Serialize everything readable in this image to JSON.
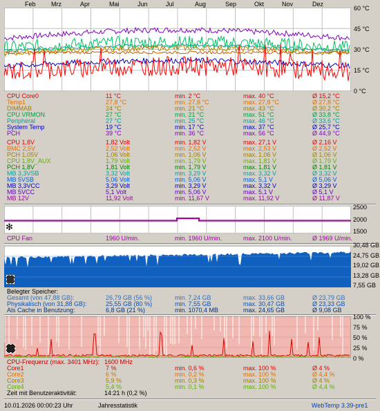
{
  "months": [
    "Feb",
    "Mrz",
    "Apr",
    "Mai",
    "Jun",
    "Jul",
    "Aug",
    "Sep",
    "Okt",
    "Nov",
    "Dez"
  ],
  "temp_chart": {
    "y_labels": [
      "60 °C",
      "45 °C",
      "30 °C",
      "15 °C",
      "0 °C"
    ],
    "ylim": [
      0,
      60
    ],
    "series": [
      {
        "color": "#8000c0",
        "level": 38
      },
      {
        "color": "#00a0a0",
        "level": 29
      },
      {
        "color": "#00c060",
        "level": 31
      },
      {
        "color": "#c08000",
        "level": 27
      },
      {
        "color": "#c06000",
        "level": 27.8
      },
      {
        "color": "#0000c0",
        "level": 18
      },
      {
        "color": "#ff0000",
        "level": 14
      }
    ]
  },
  "temps": [
    {
      "name": "CPU Core0",
      "cur": "11 °C",
      "min": "min. 2 °C",
      "max": "max. 40 °C",
      "avg": "Ø 15,2 °C",
      "color": "#e00000"
    },
    {
      "name": "Temp1",
      "cur": "27,8 °C",
      "min": "min. 27,8 °C",
      "max": "max. 27,8 °C",
      "avg": "Ø 27,8 °C",
      "color": "#e07000"
    },
    {
      "name": "DIMMAB",
      "cur": "24 °C",
      "min": "min. 21 °C",
      "max": "max. 43 °C",
      "avg": "Ø 30,2 °C",
      "color": "#a08000"
    },
    {
      "name": "CPU VRMON",
      "cur": "27 °C",
      "min": "min. 21 °C",
      "max": "max. 51 °C",
      "avg": "Ø 33,8 °C",
      "color": "#00a040"
    },
    {
      "name": "Peripheral",
      "cur": "27 °C",
      "min": "min. 25 °C",
      "max": "max. 46 °C",
      "avg": "Ø 33,6 °C",
      "color": "#00a0a0"
    },
    {
      "name": "System Temp",
      "cur": "19 °C",
      "min": "min. 17 °C",
      "max": "max. 37 °C",
      "avg": "Ø 25,7 °C",
      "color": "#0000c0"
    },
    {
      "name": "PCH",
      "cur": "39 °C",
      "min": "min. 36 °C",
      "max": "max. 56 °C",
      "avg": "Ø 44,9 °C",
      "color": "#8000c0"
    }
  ],
  "volts": [
    {
      "name": "CPU 1,8V",
      "cur": "1,82 Volt",
      "min": "min. 1,82 V",
      "max": "max. 27,1 V",
      "avg": "Ø 2,16 V",
      "color": "#e00000"
    },
    {
      "name": "BMC 2,5V",
      "cur": "2,52 Volt",
      "min": "min. 2,52 V",
      "max": "max. 2,53 V",
      "avg": "Ø 2,52 V",
      "color": "#e07000"
    },
    {
      "name": "PCH 1,05V",
      "cur": "1,06 Volt",
      "min": "min. 1,06 V",
      "max": "max. 1,06 V",
      "avg": "Ø 1,06 V",
      "color": "#a08000"
    },
    {
      "name": "CPU 1,8V_AUX",
      "cur": "1,79 Volt",
      "min": "min. 1,79 V",
      "max": "max. 1,81 V",
      "avg": "Ø 1,79 V",
      "color": "#60b000"
    },
    {
      "name": "PCH 1,8V",
      "cur": "1,81 Volt",
      "min": "min. 1,79 V",
      "max": "max. 1,81 V",
      "avg": "Ø 1,81 V",
      "color": "#008000"
    },
    {
      "name": "MB 3,3VSB",
      "cur": "3,32 Volt",
      "min": "min. 3,29 V",
      "max": "max. 3,32 V",
      "avg": "Ø 3,32 V",
      "color": "#00a0a0"
    },
    {
      "name": "MB 5VSB",
      "cur": "5,06 Volt",
      "min": "min. 5,06 V",
      "max": "max. 5,1 V",
      "avg": "Ø 5,06 V",
      "color": "#0060e0"
    },
    {
      "name": "MB 3,3VCC",
      "cur": "3,29 Volt",
      "min": "min. 3,29 V",
      "max": "max. 3,32 V",
      "avg": "Ø 3,29 V",
      "color": "#0000c0"
    },
    {
      "name": "MB 5VCC",
      "cur": "5,1 Volt",
      "min": "min. 5,06 V",
      "max": "max. 5,1 V",
      "avg": "Ø 5,1 V",
      "color": "#6000c0"
    },
    {
      "name": "MB 12V",
      "cur": "11,92 Volt",
      "min": "min. 11,67 V",
      "max": "max. 11,92 V",
      "avg": "Ø 11,87 V",
      "color": "#a000a0"
    }
  ],
  "fan_chart": {
    "y_labels": [
      "2500",
      "2000",
      "1500"
    ],
    "ylim": [
      1500,
      2500
    ],
    "color": "#a000a0",
    "level": 1960,
    "bump": 2050
  },
  "fan": {
    "name": "CPU Fan",
    "cur": "1960 U/min.",
    "min": "min. 1960 U/min.",
    "max": "max. 2100 U/min.",
    "avg": "Ø 1969 U/min.",
    "color": "#a000a0"
  },
  "mem_chart": {
    "y_labels": [
      "30,48 GB",
      "24,75 GB",
      "19,02 GB",
      "13,28 GB",
      "7,55 GB"
    ],
    "ylim": [
      7.55,
      30.48
    ],
    "fill": "#1060c0",
    "level": 26.5
  },
  "mem": {
    "header": "Belegter Speicher:",
    "rows": [
      {
        "name": "Gesamt (von 47,88 GB):",
        "cur": "26,79 GB (56 %)",
        "min": "min. 7,24 GB",
        "max": "max. 33,66 GB",
        "avg": "Ø 23,79 GB",
        "color": "#3070c0"
      },
      {
        "name": "Physikalisch (von 31,88 GB):",
        "cur": "25,55 GB (80 %)",
        "min": "min. 7,55 GB",
        "max": "max. 30,47 GB",
        "avg": "Ø 23,33 GB",
        "color": "#1050b0"
      },
      {
        "name": "Als Cache in Benutzung:",
        "cur": "6,8 GB (21 %)",
        "min": "min. 1070,4 MB",
        "max": "max. 24,65 GB",
        "avg": "Ø 9,08 GB",
        "color": "#003080"
      }
    ]
  },
  "cpu_chart": {
    "y_labels": [
      "100 %",
      "75 %",
      "50 %",
      "25 %",
      "0 %"
    ],
    "ylim": [
      0,
      100
    ],
    "bg": "#f0b8b0",
    "spike": "#ffffff",
    "core_color": "#e00000"
  },
  "cpu": {
    "header": "CPU-Frequenz (max. 3401 MHz):",
    "freq": "1600 MHz",
    "header_color": "#c00000",
    "rows": [
      {
        "name": "Core1",
        "cur": "7 %",
        "min": "min. 0,6 %",
        "max": "max. 100 %",
        "avg": "Ø 4 %",
        "color": "#e00000"
      },
      {
        "name": "Core2",
        "cur": "6 %",
        "min": "min. 0,2 %",
        "max": "max. 100 %",
        "avg": "Ø 4,4 %",
        "color": "#e07000"
      },
      {
        "name": "Core3",
        "cur": "5,9 %",
        "min": "min. 0,3 %",
        "max": "max. 100 %",
        "avg": "Ø 4 %",
        "color": "#a08000"
      },
      {
        "name": "Core4",
        "cur": "5,4 %",
        "min": "min. 0,1 %",
        "max": "max. 100 %",
        "avg": "Ø 4,4 %",
        "color": "#60b000"
      }
    ],
    "activity_label": "Zeit mit Benutzeraktivität:",
    "activity_value": "14:21 h (0,2 %)"
  },
  "footer": {
    "datetime": "10.01.2026 00:00:23 Uhr",
    "title": "Jahresstatistik",
    "version": "WebTemp 3.39-pre1",
    "version_color": "#0040c0"
  }
}
